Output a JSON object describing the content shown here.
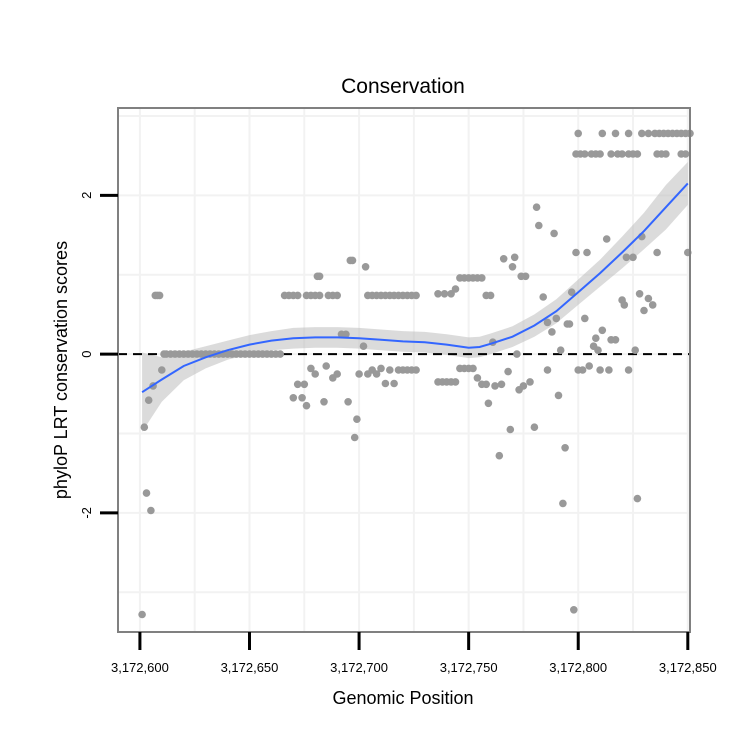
{
  "chart_data": {
    "type": "scatter",
    "title": "Conservation",
    "xlabel": "Genomic Position",
    "ylabel": "phyloP LRT conservation scores",
    "xlim": [
      3172590,
      3172851
    ],
    "ylim": [
      -3.5,
      3.1
    ],
    "x_ticks": [
      3172600,
      3172650,
      3172700,
      3172750,
      3172800,
      3172850
    ],
    "x_tick_labels": [
      "3,172,600",
      "3,172,650",
      "3,172,700",
      "3,172,750",
      "3,172,800",
      "3,172,850"
    ],
    "y_ticks": [
      -2,
      0,
      2
    ],
    "y_tick_labels": [
      "-2",
      "0",
      "2"
    ],
    "grid": true,
    "reference_line": {
      "y": 0,
      "style": "dashed",
      "color": "#000000"
    },
    "colors": {
      "points": "#999999",
      "smooth": "#3366FF",
      "ribbon": "#BEBEBE",
      "panel_border": "#808080",
      "grid": "#F2F2F2"
    },
    "points": [
      [
        3172601,
        -3.28
      ],
      [
        3172602,
        -0.92
      ],
      [
        3172603,
        -1.75
      ],
      [
        3172604,
        -0.58
      ],
      [
        3172605,
        -1.97
      ],
      [
        3172606,
        -0.4
      ],
      [
        3172607,
        0.74
      ],
      [
        3172608,
        0.74
      ],
      [
        3172609,
        0.74
      ],
      [
        3172610,
        -0.2
      ],
      [
        3172611,
        0.0
      ],
      [
        3172612,
        0.0
      ],
      [
        3172614,
        0.0
      ],
      [
        3172616,
        0.0
      ],
      [
        3172618,
        0.0
      ],
      [
        3172620,
        0.0
      ],
      [
        3172622,
        0.0
      ],
      [
        3172624,
        0.0
      ],
      [
        3172626,
        0.0
      ],
      [
        3172628,
        0.0
      ],
      [
        3172630,
        0.0
      ],
      [
        3172632,
        0.0
      ],
      [
        3172634,
        0.0
      ],
      [
        3172636,
        0.0
      ],
      [
        3172638,
        0.0
      ],
      [
        3172640,
        0.0
      ],
      [
        3172642,
        0.0
      ],
      [
        3172644,
        0.0
      ],
      [
        3172646,
        0.0
      ],
      [
        3172648,
        0.0
      ],
      [
        3172650,
        0.0
      ],
      [
        3172652,
        0.0
      ],
      [
        3172654,
        0.0
      ],
      [
        3172656,
        0.0
      ],
      [
        3172658,
        0.0
      ],
      [
        3172660,
        0.0
      ],
      [
        3172662,
        0.0
      ],
      [
        3172664,
        0.0
      ],
      [
        3172666,
        0.74
      ],
      [
        3172668,
        0.74
      ],
      [
        3172670,
        0.74
      ],
      [
        3172672,
        0.74
      ],
      [
        3172676,
        0.74
      ],
      [
        3172678,
        0.74
      ],
      [
        3172680,
        0.74
      ],
      [
        3172682,
        0.74
      ],
      [
        3172686,
        0.74
      ],
      [
        3172688,
        0.74
      ],
      [
        3172690,
        0.74
      ],
      [
        3172670,
        -0.55
      ],
      [
        3172672,
        -0.38
      ],
      [
        3172674,
        -0.55
      ],
      [
        3172675,
        -0.38
      ],
      [
        3172676,
        -0.65
      ],
      [
        3172678,
        -0.18
      ],
      [
        3172680,
        -0.25
      ],
      [
        3172681,
        0.98
      ],
      [
        3172682,
        0.98
      ],
      [
        3172684,
        -0.6
      ],
      [
        3172685,
        -0.15
      ],
      [
        3172688,
        -0.3
      ],
      [
        3172690,
        -0.25
      ],
      [
        3172692,
        0.25
      ],
      [
        3172694,
        0.25
      ],
      [
        3172695,
        -0.6
      ],
      [
        3172696,
        1.18
      ],
      [
        3172697,
        1.18
      ],
      [
        3172698,
        -1.05
      ],
      [
        3172699,
        -0.82
      ],
      [
        3172700,
        -0.25
      ],
      [
        3172702,
        0.1
      ],
      [
        3172703,
        1.1
      ],
      [
        3172704,
        0.74
      ],
      [
        3172706,
        0.74
      ],
      [
        3172708,
        0.74
      ],
      [
        3172710,
        0.74
      ],
      [
        3172712,
        0.74
      ],
      [
        3172714,
        0.74
      ],
      [
        3172716,
        0.74
      ],
      [
        3172718,
        0.74
      ],
      [
        3172720,
        0.74
      ],
      [
        3172722,
        0.74
      ],
      [
        3172724,
        0.74
      ],
      [
        3172726,
        0.74
      ],
      [
        3172704,
        -0.25
      ],
      [
        3172706,
        -0.2
      ],
      [
        3172708,
        -0.25
      ],
      [
        3172710,
        -0.18
      ],
      [
        3172712,
        -0.37
      ],
      [
        3172714,
        -0.2
      ],
      [
        3172716,
        -0.37
      ],
      [
        3172718,
        -0.2
      ],
      [
        3172720,
        -0.2
      ],
      [
        3172722,
        -0.2
      ],
      [
        3172724,
        -0.2
      ],
      [
        3172726,
        -0.2
      ],
      [
        3172736,
        0.76
      ],
      [
        3172739,
        0.76
      ],
      [
        3172742,
        0.76
      ],
      [
        3172744,
        0.82
      ],
      [
        3172746,
        0.96
      ],
      [
        3172748,
        0.96
      ],
      [
        3172750,
        0.96
      ],
      [
        3172752,
        0.96
      ],
      [
        3172754,
        0.96
      ],
      [
        3172756,
        0.96
      ],
      [
        3172758,
        0.74
      ],
      [
        3172760,
        0.74
      ],
      [
        3172736,
        -0.35
      ],
      [
        3172738,
        -0.35
      ],
      [
        3172740,
        -0.35
      ],
      [
        3172742,
        -0.35
      ],
      [
        3172744,
        -0.35
      ],
      [
        3172746,
        -0.18
      ],
      [
        3172748,
        -0.18
      ],
      [
        3172750,
        -0.18
      ],
      [
        3172752,
        -0.18
      ],
      [
        3172754,
        -0.3
      ],
      [
        3172756,
        -0.38
      ],
      [
        3172758,
        -0.38
      ],
      [
        3172759,
        -0.62
      ],
      [
        3172761,
        0.15
      ],
      [
        3172762,
        -0.4
      ],
      [
        3172764,
        -1.28
      ],
      [
        3172765,
        -0.38
      ],
      [
        3172766,
        1.2
      ],
      [
        3172768,
        -0.22
      ],
      [
        3172769,
        -0.95
      ],
      [
        3172770,
        1.1
      ],
      [
        3172771,
        1.22
      ],
      [
        3172772,
        0.0
      ],
      [
        3172773,
        -0.45
      ],
      [
        3172774,
        0.98
      ],
      [
        3172775,
        -0.4
      ],
      [
        3172776,
        0.98
      ],
      [
        3172778,
        -0.35
      ],
      [
        3172780,
        -0.92
      ],
      [
        3172781,
        1.85
      ],
      [
        3172782,
        1.62
      ],
      [
        3172784,
        0.72
      ],
      [
        3172786,
        0.4
      ],
      [
        3172786,
        -0.2
      ],
      [
        3172788,
        0.28
      ],
      [
        3172789,
        1.52
      ],
      [
        3172790,
        0.45
      ],
      [
        3172791,
        -0.52
      ],
      [
        3172792,
        0.05
      ],
      [
        3172793,
        -1.88
      ],
      [
        3172794,
        -1.18
      ],
      [
        3172795,
        0.38
      ],
      [
        3172796,
        0.38
      ],
      [
        3172797,
        0.78
      ],
      [
        3172798,
        -3.22
      ],
      [
        3172799,
        1.28
      ],
      [
        3172800,
        2.78
      ],
      [
        3172800,
        -0.2
      ],
      [
        3172802,
        -0.2
      ],
      [
        3172803,
        0.45
      ],
      [
        3172804,
        1.28
      ],
      [
        3172805,
        -0.15
      ],
      [
        3172807,
        0.1
      ],
      [
        3172808,
        0.2
      ],
      [
        3172809,
        0.05
      ],
      [
        3172810,
        -0.2
      ],
      [
        3172811,
        0.3
      ],
      [
        3172813,
        1.45
      ],
      [
        3172814,
        -0.2
      ],
      [
        3172815,
        0.18
      ],
      [
        3172817,
        0.18
      ],
      [
        3172820,
        0.68
      ],
      [
        3172821,
        0.62
      ],
      [
        3172822,
        1.22
      ],
      [
        3172823,
        -0.2
      ],
      [
        3172825,
        1.22
      ],
      [
        3172826,
        0.05
      ],
      [
        3172827,
        -1.82
      ],
      [
        3172828,
        0.76
      ],
      [
        3172829,
        1.48
      ],
      [
        3172830,
        0.55
      ],
      [
        3172832,
        0.7
      ],
      [
        3172834,
        0.62
      ],
      [
        3172836,
        1.28
      ],
      [
        3172850,
        1.28
      ],
      [
        3172799,
        2.52
      ],
      [
        3172801,
        2.52
      ],
      [
        3172803,
        2.52
      ],
      [
        3172806,
        2.52
      ],
      [
        3172808,
        2.52
      ],
      [
        3172810,
        2.52
      ],
      [
        3172815,
        2.52
      ],
      [
        3172818,
        2.52
      ],
      [
        3172820,
        2.52
      ],
      [
        3172823,
        2.52
      ],
      [
        3172825,
        2.52
      ],
      [
        3172827,
        2.52
      ],
      [
        3172836,
        2.52
      ],
      [
        3172838,
        2.52
      ],
      [
        3172840,
        2.52
      ],
      [
        3172847,
        2.52
      ],
      [
        3172849,
        2.52
      ],
      [
        3172811,
        2.78
      ],
      [
        3172817,
        2.78
      ],
      [
        3172823,
        2.78
      ],
      [
        3172829,
        2.78
      ],
      [
        3172832,
        2.78
      ],
      [
        3172835,
        2.78
      ],
      [
        3172837,
        2.78
      ],
      [
        3172839,
        2.78
      ],
      [
        3172841,
        2.78
      ],
      [
        3172843,
        2.78
      ],
      [
        3172845,
        2.78
      ],
      [
        3172847,
        2.78
      ],
      [
        3172849,
        2.78
      ],
      [
        3172851,
        2.78
      ]
    ],
    "smooth": {
      "x": [
        3172601,
        3172610,
        3172620,
        3172630,
        3172640,
        3172650,
        3172660,
        3172670,
        3172680,
        3172690,
        3172700,
        3172710,
        3172720,
        3172730,
        3172740,
        3172750,
        3172755,
        3172760,
        3172770,
        3172780,
        3172790,
        3172800,
        3172810,
        3172820,
        3172830,
        3172840,
        3172850
      ],
      "y": [
        -0.48,
        -0.32,
        -0.15,
        -0.04,
        0.05,
        0.12,
        0.17,
        0.2,
        0.21,
        0.21,
        0.2,
        0.18,
        0.16,
        0.15,
        0.12,
        0.08,
        0.09,
        0.13,
        0.22,
        0.36,
        0.54,
        0.78,
        1.02,
        1.28,
        1.55,
        1.85,
        2.15
      ],
      "lo": [
        -0.98,
        -0.6,
        -0.33,
        -0.18,
        -0.07,
        0.0,
        0.05,
        0.07,
        0.08,
        0.08,
        0.07,
        0.05,
        0.03,
        0.02,
        -0.01,
        -0.05,
        -0.04,
        0.0,
        0.09,
        0.22,
        0.39,
        0.62,
        0.85,
        1.08,
        1.32,
        1.57,
        1.88
      ],
      "hi": [
        0.02,
        -0.04,
        0.03,
        0.1,
        0.17,
        0.24,
        0.29,
        0.33,
        0.34,
        0.34,
        0.33,
        0.31,
        0.29,
        0.28,
        0.25,
        0.21,
        0.22,
        0.26,
        0.35,
        0.5,
        0.69,
        0.94,
        1.19,
        1.48,
        1.78,
        2.13,
        2.42
      ]
    }
  }
}
